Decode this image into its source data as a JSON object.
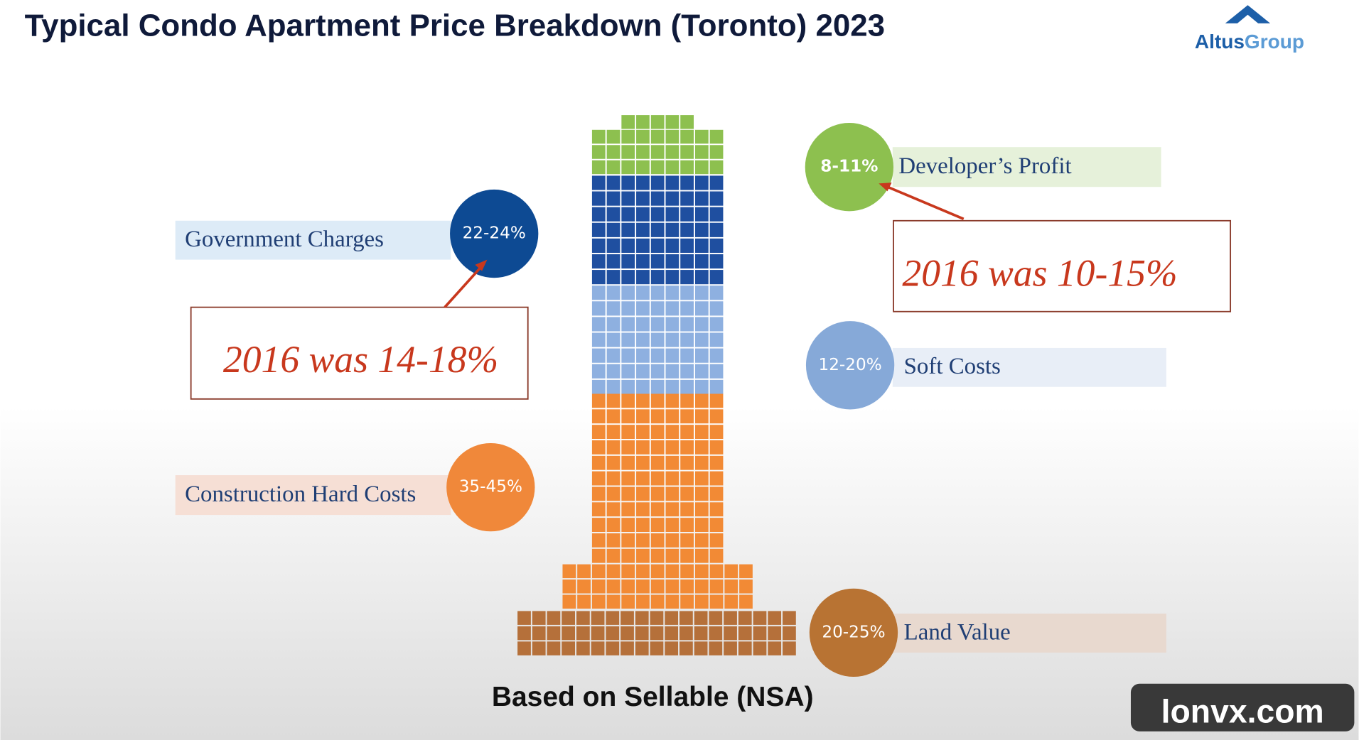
{
  "title": "Typical Condo Apartment Price Breakdown (Toronto) 2023",
  "logo": {
    "primary": "Altus",
    "secondary": "Group"
  },
  "components": [
    {
      "label": "Developer’s Profit",
      "range": "8-11%"
    },
    {
      "label": "Government Charges",
      "range": "22-24%"
    },
    {
      "label": "Soft Costs",
      "range": "12-20%"
    },
    {
      "label": "Construction Hard Costs",
      "range": "35-45%"
    },
    {
      "label": "Land Value",
      "range": "20-25%"
    }
  ],
  "annotations": [
    {
      "text": "2016 was 14-18%"
    },
    {
      "text": "2016 was 10-15%"
    }
  ],
  "footer": "Based on Sellable (NSA)",
  "watermark": "lonvx.com"
}
